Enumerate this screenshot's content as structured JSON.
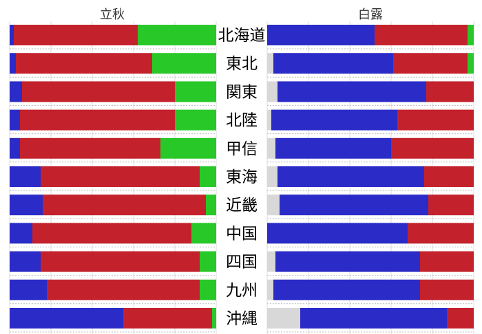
{
  "chart_data": [
    {
      "type": "bar",
      "orientation": "horizontal",
      "stacked": true,
      "title": "立秋",
      "categories": [
        "北海道",
        "東北",
        "関東",
        "北陸",
        "甲信",
        "東海",
        "近畿",
        "中国",
        "四国",
        "九州",
        "沖縄"
      ],
      "xlim": [
        0,
        100
      ],
      "grid": true,
      "series": [
        {
          "color": "#2b2bc8",
          "values": [
            2,
            3,
            6,
            5,
            5,
            15,
            16,
            11,
            15,
            18,
            55
          ]
        },
        {
          "color": "#c3222c",
          "values": [
            60,
            66,
            74,
            75,
            68,
            77,
            79,
            77,
            77,
            74,
            43
          ]
        },
        {
          "color": "#28c828",
          "values": [
            38,
            31,
            20,
            20,
            27,
            8,
            5,
            12,
            8,
            8,
            2
          ]
        }
      ]
    },
    {
      "type": "bar",
      "orientation": "horizontal",
      "stacked": true,
      "title": "白露",
      "categories": [
        "北海道",
        "東北",
        "関東",
        "北陸",
        "甲信",
        "東海",
        "近畿",
        "中国",
        "四国",
        "九州",
        "沖縄"
      ],
      "xlim": [
        0,
        100
      ],
      "grid": true,
      "series": [
        {
          "color": "#d8d8d8",
          "values": [
            0,
            3,
            5,
            2,
            4,
            5,
            6,
            0,
            4,
            3,
            16
          ]
        },
        {
          "color": "#2b2bc8",
          "values": [
            52,
            58,
            72,
            61,
            56,
            71,
            72,
            68,
            70,
            71,
            71
          ]
        },
        {
          "color": "#c3222c",
          "values": [
            45,
            36,
            23,
            37,
            40,
            24,
            22,
            32,
            26,
            26,
            13
          ]
        },
        {
          "color": "#28c828",
          "values": [
            3,
            3,
            0,
            0,
            0,
            0,
            0,
            0,
            0,
            0,
            0
          ]
        }
      ]
    }
  ]
}
